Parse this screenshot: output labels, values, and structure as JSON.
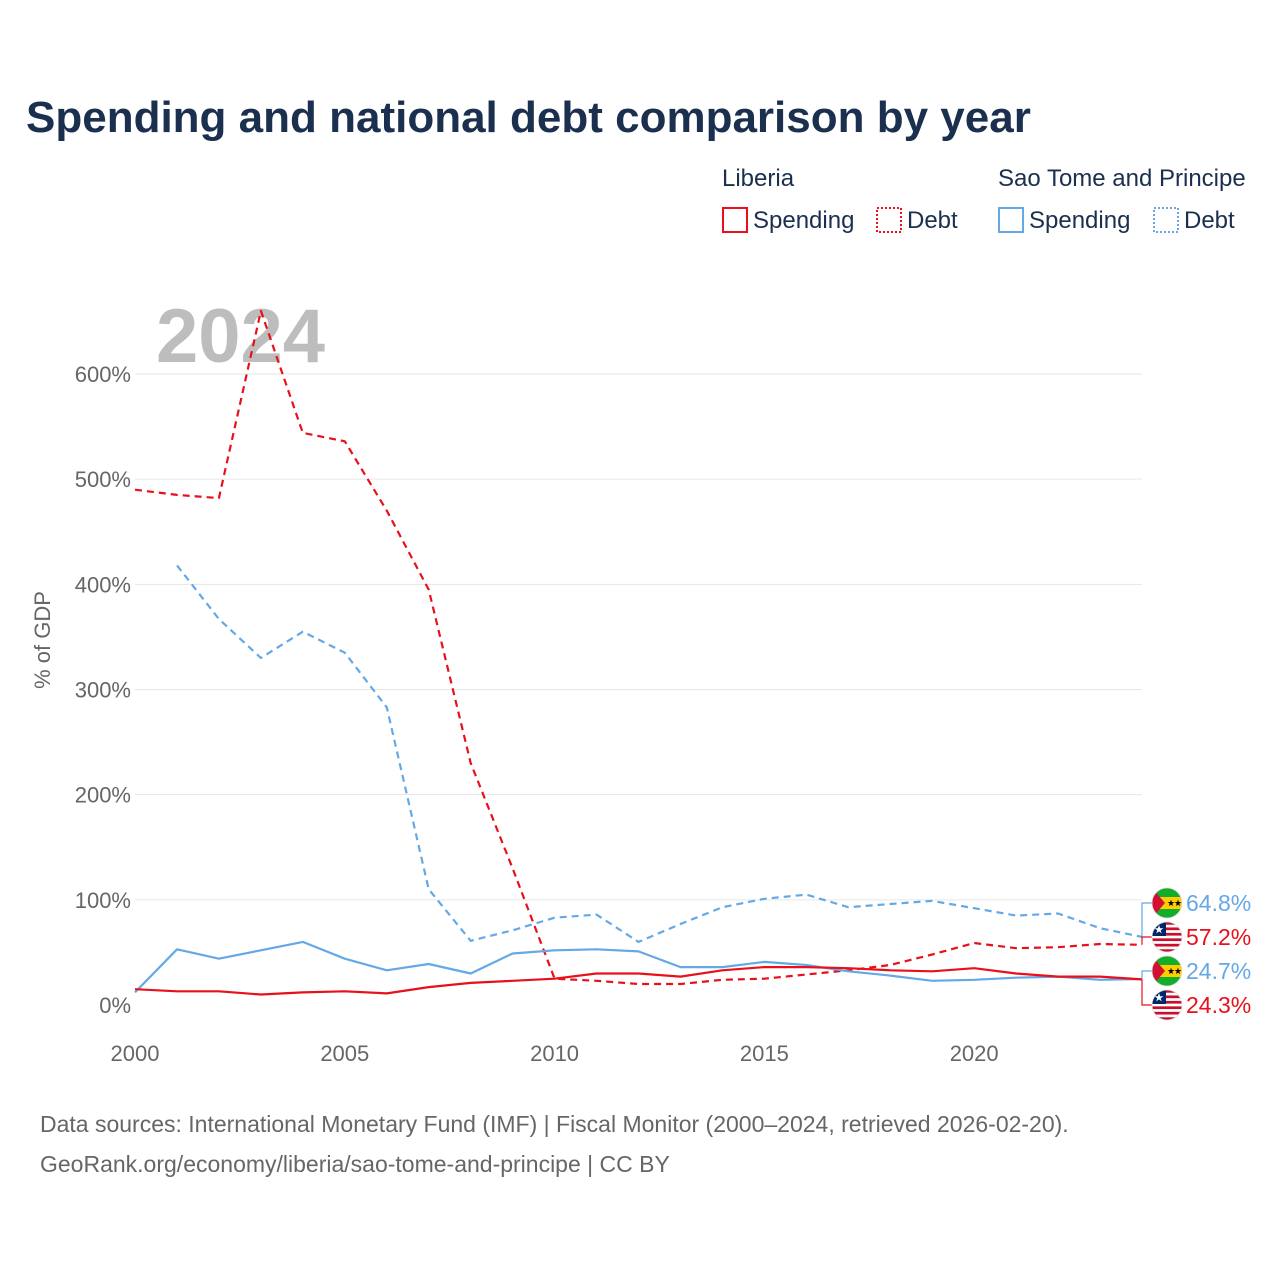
{
  "title": "Spending and national debt comparison by year",
  "year_label": "2024",
  "legend": {
    "groups": [
      {
        "country": "Liberia",
        "color": "#e8101a",
        "items": [
          {
            "label": "Spending",
            "style": "solid"
          },
          {
            "label": "Debt",
            "style": "dotted"
          }
        ]
      },
      {
        "country": "Sao Tome and Principe",
        "color": "#64a8e6",
        "items": [
          {
            "label": "Spending",
            "style": "solid"
          },
          {
            "label": "Debt",
            "style": "dotted"
          }
        ]
      }
    ]
  },
  "chart_data": {
    "type": "line",
    "title": "Spending and national debt comparison by year",
    "xlabel": "",
    "ylabel": "% of GDP",
    "xlim": [
      2000,
      2024
    ],
    "ylim": [
      0,
      630
    ],
    "x_ticks": [
      2000,
      2005,
      2010,
      2015,
      2020
    ],
    "y_ticks": [
      0,
      100,
      200,
      300,
      400,
      500,
      600
    ],
    "y_tick_labels": [
      "0%",
      "100%",
      "200%",
      "300%",
      "400%",
      "500%",
      "600%"
    ],
    "grid": true,
    "series": [
      {
        "name": "Liberia Debt",
        "country": "Liberia",
        "metric": "Debt",
        "color": "#e8101a",
        "dash": true,
        "x": [
          2000,
          2001,
          2002,
          2003,
          2004,
          2005,
          2006,
          2007,
          2008,
          2009,
          2010,
          2011,
          2012,
          2013,
          2014,
          2015,
          2016,
          2017,
          2018,
          2019,
          2020,
          2021,
          2022,
          2023,
          2024
        ],
        "values": [
          490,
          485,
          482,
          660,
          544,
          536,
          470,
          395,
          230,
          130,
          25,
          23,
          20,
          20,
          24,
          25,
          29,
          33,
          38,
          48,
          59,
          54,
          55,
          58,
          57.2
        ]
      },
      {
        "name": "Sao Tome and Principe Debt",
        "country": "Sao Tome and Principe",
        "metric": "Debt",
        "color": "#64a8e6",
        "dash": true,
        "x": [
          2001,
          2002,
          2003,
          2004,
          2005,
          2006,
          2007,
          2008,
          2009,
          2010,
          2011,
          2012,
          2013,
          2014,
          2015,
          2016,
          2017,
          2018,
          2019,
          2020,
          2021,
          2022,
          2023,
          2024
        ],
        "values": [
          418,
          367,
          330,
          355,
          335,
          283,
          110,
          61,
          71,
          83,
          86,
          60,
          77,
          93,
          101,
          105,
          93,
          96,
          99,
          92,
          85,
          87,
          73,
          64.8
        ]
      },
      {
        "name": "Sao Tome and Principe Spending",
        "country": "Sao Tome and Principe",
        "metric": "Spending",
        "color": "#64a8e6",
        "dash": false,
        "x": [
          2000,
          2001,
          2002,
          2003,
          2004,
          2005,
          2006,
          2007,
          2008,
          2009,
          2010,
          2011,
          2012,
          2013,
          2014,
          2015,
          2016,
          2017,
          2018,
          2019,
          2020,
          2021,
          2022,
          2023,
          2024
        ],
        "values": [
          12,
          53,
          44,
          52,
          60,
          44,
          33,
          39,
          30,
          49,
          52,
          53,
          51,
          36,
          36,
          41,
          38,
          32,
          28,
          23,
          24,
          26,
          27,
          24,
          24.7
        ]
      },
      {
        "name": "Liberia Spending",
        "country": "Liberia",
        "metric": "Spending",
        "color": "#e8101a",
        "dash": false,
        "x": [
          2000,
          2001,
          2002,
          2003,
          2004,
          2005,
          2006,
          2007,
          2008,
          2009,
          2010,
          2011,
          2012,
          2013,
          2014,
          2015,
          2016,
          2017,
          2018,
          2019,
          2020,
          2021,
          2022,
          2023,
          2024
        ],
        "values": [
          15,
          13,
          13,
          10,
          12,
          13,
          11,
          17,
          21,
          23,
          25,
          30,
          30,
          27,
          33,
          36,
          36,
          35,
          33,
          32,
          35,
          30,
          27,
          27,
          24.3
        ]
      }
    ],
    "end_labels": [
      {
        "text": "64.8%",
        "series": "Sao Tome and Principe Debt",
        "color": "#64a8e6",
        "flag": "sao-tome-flag"
      },
      {
        "text": "57.2%",
        "series": "Liberia Debt",
        "color": "#e8101a",
        "flag": "liberia-flag"
      },
      {
        "text": "24.7%",
        "series": "Sao Tome and Principe Spending",
        "color": "#64a8e6",
        "flag": "sao-tome-flag"
      },
      {
        "text": "24.3%",
        "series": "Liberia Spending",
        "color": "#e8101a",
        "flag": "liberia-flag"
      }
    ]
  },
  "footer": {
    "line1": "Data sources: International Monetary Fund (IMF) | Fiscal Monitor (2000–2024, retrieved 2026-02-20).",
    "line2": "GeoRank.org/economy/liberia/sao-tome-and-principe | CC BY"
  }
}
